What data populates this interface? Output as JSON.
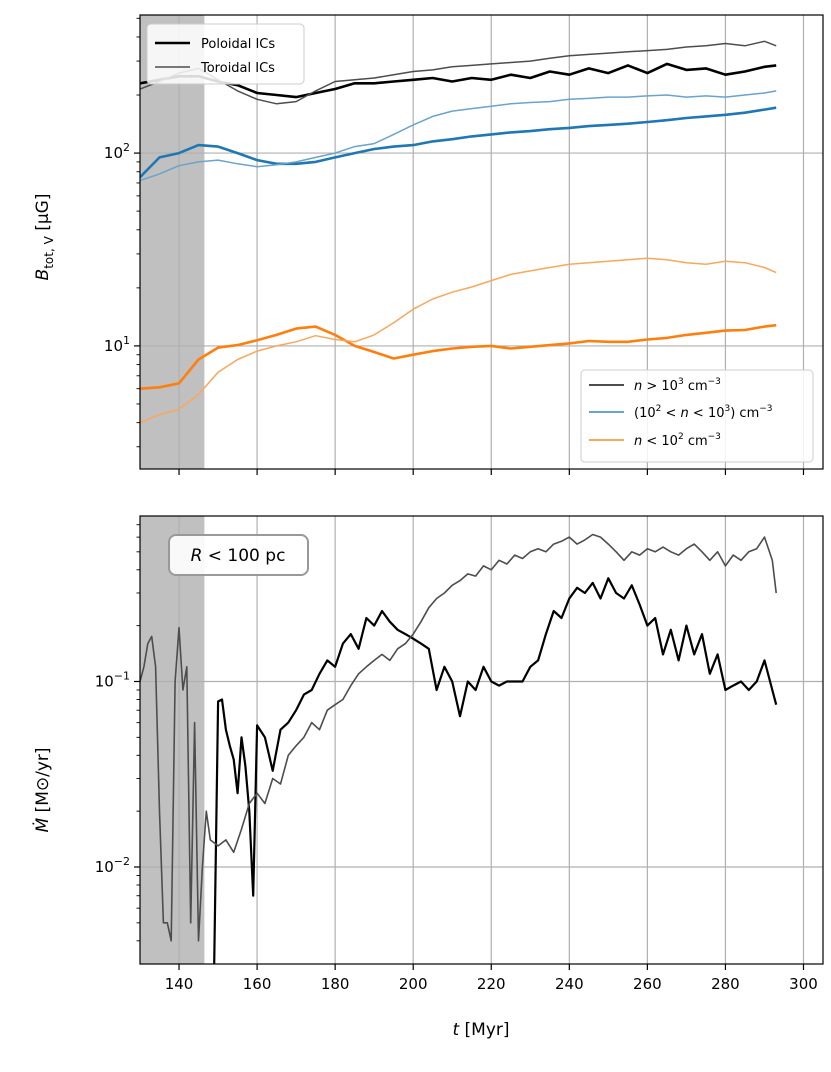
{
  "colors": {
    "poloidal_dense": "#000000",
    "toroidal_dense": "#4d4d4d",
    "blue": "#1f77b4",
    "orange": "#ff7f0e",
    "shade": "#c0c0c0",
    "grid": "#b0b0b0"
  },
  "chart_data": [
    {
      "type": "line",
      "panel": "top",
      "yscale": "log",
      "xlim": [
        130,
        305
      ],
      "ylim": [
        2.3,
        520
      ],
      "grid": true,
      "shaded_span": [
        130,
        146.5
      ],
      "ylabel": {
        "main": "B",
        "sub": "tot, V",
        "unit": "[μG]"
      },
      "xlabel": "",
      "yticks": [
        10,
        100
      ],
      "ytick_labels": [
        {
          "base": "10",
          "exp": "1"
        },
        {
          "base": "10",
          "exp": "2"
        }
      ],
      "xticks": [
        140,
        160,
        180,
        200,
        220,
        240,
        260,
        280,
        300
      ],
      "legend_ic": {
        "placement": "upper-left",
        "entries": [
          {
            "label": "Poloidal ICs",
            "style": "thick"
          },
          {
            "label": "Toroidal ICs",
            "style": "thin"
          }
        ]
      },
      "legend_density": {
        "placement": "lower-right",
        "entries": [
          {
            "pre": "n > 10",
            "sup": "3",
            "post": " cm",
            "sup2": "−3",
            "color": "#4d4d4d"
          },
          {
            "pre": "(10",
            "sup": "2",
            "mid": " < n < 10",
            "sup_b": "3",
            "post": ") cm",
            "sup2": "−3",
            "color": "#6aa3cc"
          },
          {
            "pre": "n < 10",
            "sup": "2",
            "post": " cm",
            "sup2": "−3",
            "color": "#f7a85c"
          }
        ]
      },
      "series": [
        {
          "name": "Poloidal ICs, n > 10^3 cm^-3",
          "color": "#000000",
          "width": 2.6,
          "x": [
            130,
            135,
            140,
            145,
            150,
            155,
            160,
            165,
            170,
            175,
            180,
            185,
            190,
            195,
            200,
            205,
            210,
            215,
            220,
            225,
            230,
            235,
            240,
            245,
            250,
            255,
            260,
            265,
            270,
            275,
            280,
            285,
            290,
            293
          ],
          "y": [
            230,
            240,
            250,
            250,
            235,
            225,
            205,
            200,
            195,
            205,
            215,
            230,
            230,
            235,
            240,
            245,
            235,
            245,
            240,
            255,
            245,
            265,
            255,
            275,
            260,
            285,
            260,
            290,
            270,
            275,
            255,
            265,
            280,
            285
          ]
        },
        {
          "name": "Toroidal ICs, n > 10^3 cm^-3",
          "color": "#4d4d4d",
          "width": 1.5,
          "x": [
            130,
            135,
            140,
            145,
            150,
            155,
            160,
            165,
            170,
            175,
            180,
            185,
            190,
            195,
            200,
            205,
            210,
            215,
            220,
            225,
            230,
            235,
            240,
            245,
            250,
            255,
            260,
            265,
            270,
            275,
            280,
            285,
            290,
            293
          ],
          "y": [
            215,
            235,
            260,
            275,
            240,
            210,
            190,
            180,
            185,
            210,
            235,
            240,
            245,
            255,
            265,
            270,
            280,
            285,
            290,
            295,
            300,
            310,
            320,
            325,
            330,
            335,
            340,
            345,
            355,
            360,
            370,
            360,
            380,
            360
          ]
        },
        {
          "name": "Poloidal ICs, (10^2 < n < 10^3) cm^-3",
          "color": "#1f77b4",
          "width": 2.6,
          "x": [
            130,
            135,
            140,
            145,
            150,
            155,
            160,
            165,
            170,
            175,
            180,
            185,
            190,
            195,
            200,
            205,
            210,
            215,
            220,
            225,
            230,
            235,
            240,
            245,
            250,
            255,
            260,
            265,
            270,
            275,
            280,
            285,
            290,
            293
          ],
          "y": [
            75,
            95,
            100,
            110,
            108,
            100,
            92,
            88,
            88,
            90,
            95,
            100,
            105,
            108,
            110,
            115,
            118,
            122,
            125,
            128,
            130,
            133,
            135,
            138,
            140,
            142,
            145,
            148,
            152,
            155,
            158,
            162,
            168,
            172
          ]
        },
        {
          "name": "Toroidal ICs, (10^2 < n < 10^3) cm^-3",
          "color": "#6aa3cc",
          "width": 1.5,
          "x": [
            130,
            135,
            140,
            145,
            150,
            155,
            160,
            165,
            170,
            175,
            180,
            185,
            190,
            195,
            200,
            205,
            210,
            215,
            220,
            225,
            230,
            235,
            240,
            245,
            250,
            255,
            260,
            265,
            270,
            275,
            280,
            285,
            290,
            293
          ],
          "y": [
            72,
            78,
            86,
            90,
            92,
            88,
            85,
            87,
            90,
            95,
            100,
            108,
            112,
            125,
            140,
            155,
            165,
            170,
            175,
            180,
            183,
            185,
            190,
            192,
            195,
            195,
            198,
            200,
            195,
            198,
            195,
            200,
            205,
            210
          ]
        },
        {
          "name": "Poloidal ICs, n < 10^2 cm^-3",
          "color": "#ff7f0e",
          "width": 2.6,
          "x": [
            130,
            135,
            140,
            145,
            150,
            155,
            160,
            165,
            170,
            175,
            180,
            185,
            190,
            195,
            200,
            205,
            210,
            215,
            220,
            225,
            230,
            235,
            240,
            245,
            250,
            255,
            260,
            265,
            270,
            275,
            280,
            285,
            290,
            293
          ],
          "y": [
            6.0,
            6.1,
            6.4,
            8.5,
            9.8,
            10.1,
            10.7,
            11.4,
            12.3,
            12.6,
            11.4,
            10.0,
            9.3,
            8.6,
            9.0,
            9.4,
            9.7,
            9.9,
            10.0,
            9.7,
            9.9,
            10.1,
            10.3,
            10.6,
            10.5,
            10.5,
            10.8,
            11.0,
            11.4,
            11.7,
            12.0,
            12.1,
            12.6,
            12.8
          ]
        },
        {
          "name": "Toroidal ICs, n < 10^2 cm^-3",
          "color": "#f7a85c",
          "width": 1.5,
          "x": [
            130,
            135,
            140,
            145,
            150,
            155,
            160,
            165,
            170,
            175,
            180,
            185,
            190,
            195,
            200,
            205,
            210,
            215,
            220,
            225,
            230,
            235,
            240,
            245,
            250,
            255,
            260,
            265,
            270,
            275,
            280,
            285,
            290,
            293
          ],
          "y": [
            4.0,
            4.4,
            4.7,
            5.6,
            7.3,
            8.5,
            9.4,
            10.0,
            10.5,
            11.3,
            10.8,
            10.5,
            11.4,
            13.2,
            15.5,
            17.5,
            19.0,
            20.2,
            21.8,
            23.5,
            24.5,
            25.5,
            26.5,
            27.0,
            27.5,
            28.0,
            28.5,
            28.0,
            27.0,
            26.5,
            27.5,
            27.0,
            25.5,
            24.0
          ]
        }
      ]
    },
    {
      "type": "line",
      "panel": "bottom",
      "yscale": "log",
      "xlim": [
        130,
        305
      ],
      "ylim": [
        0.003,
        0.78
      ],
      "grid": true,
      "shaded_span": [
        130,
        146.5
      ],
      "ylabel": {
        "main": "Ṁ",
        "unit": "[M⊙/yr]"
      },
      "xlabel": {
        "main": "t",
        "unit": "[Myr]"
      },
      "yticks": [
        0.01,
        0.1
      ],
      "ytick_labels": [
        {
          "base": "10",
          "exp": "−2"
        },
        {
          "base": "10",
          "exp": "−1"
        }
      ],
      "xticks": [
        140,
        160,
        180,
        200,
        220,
        240,
        260,
        280,
        300
      ],
      "xtick_labels": [
        "140",
        "160",
        "180",
        "200",
        "220",
        "240",
        "260",
        "280",
        "300"
      ],
      "annotation": {
        "pre": "R",
        "post": " < 100 pc",
        "placement": "upper-left"
      },
      "series": [
        {
          "name": "Poloidal ICs",
          "color": "#000000",
          "width": 2.2,
          "x": [
            149,
            150,
            151,
            152,
            153,
            154,
            155,
            156,
            157,
            158,
            159,
            160,
            162,
            164,
            166,
            168,
            170,
            172,
            174,
            176,
            178,
            180,
            182,
            184,
            186,
            188,
            190,
            192,
            194,
            196,
            198,
            200,
            202,
            204,
            206,
            208,
            210,
            212,
            214,
            216,
            218,
            220,
            222,
            224,
            226,
            228,
            230,
            232,
            234,
            236,
            238,
            240,
            242,
            244,
            246,
            248,
            250,
            252,
            254,
            256,
            258,
            260,
            262,
            264,
            266,
            268,
            270,
            272,
            274,
            276,
            278,
            280,
            282,
            284,
            286,
            288,
            290,
            292,
            293
          ],
          "y": [
            0.003,
            0.078,
            0.08,
            0.055,
            0.045,
            0.038,
            0.025,
            0.05,
            0.035,
            0.02,
            0.007,
            0.058,
            0.05,
            0.033,
            0.055,
            0.06,
            0.07,
            0.085,
            0.09,
            0.11,
            0.13,
            0.12,
            0.16,
            0.18,
            0.15,
            0.22,
            0.2,
            0.24,
            0.21,
            0.19,
            0.18,
            0.17,
            0.16,
            0.15,
            0.09,
            0.12,
            0.1,
            0.065,
            0.1,
            0.09,
            0.12,
            0.1,
            0.095,
            0.1,
            0.1,
            0.1,
            0.12,
            0.13,
            0.18,
            0.24,
            0.22,
            0.28,
            0.32,
            0.3,
            0.34,
            0.28,
            0.36,
            0.3,
            0.28,
            0.33,
            0.26,
            0.2,
            0.22,
            0.14,
            0.19,
            0.13,
            0.2,
            0.14,
            0.18,
            0.11,
            0.14,
            0.09,
            0.095,
            0.1,
            0.09,
            0.1,
            0.13,
            0.09,
            0.075
          ]
        },
        {
          "name": "Toroidal ICs",
          "color": "#4d4d4d",
          "width": 1.6,
          "x": [
            130,
            131,
            132,
            133,
            134,
            135,
            136,
            137,
            138,
            139,
            140,
            141,
            142,
            143,
            144,
            145,
            146,
            147,
            148,
            150,
            152,
            154,
            156,
            158,
            160,
            162,
            164,
            166,
            168,
            170,
            172,
            174,
            176,
            178,
            180,
            182,
            184,
            186,
            188,
            190,
            192,
            194,
            196,
            198,
            200,
            202,
            204,
            206,
            208,
            210,
            212,
            214,
            216,
            218,
            220,
            222,
            224,
            226,
            228,
            230,
            232,
            234,
            236,
            238,
            240,
            242,
            244,
            246,
            248,
            250,
            252,
            254,
            256,
            258,
            260,
            262,
            264,
            266,
            268,
            270,
            272,
            274,
            276,
            278,
            280,
            282,
            284,
            286,
            288,
            290,
            292,
            293
          ],
          "y": [
            0.1,
            0.12,
            0.16,
            0.175,
            0.12,
            0.02,
            0.005,
            0.005,
            0.004,
            0.1,
            0.195,
            0.09,
            0.12,
            0.005,
            0.06,
            0.004,
            0.01,
            0.02,
            0.014,
            0.013,
            0.014,
            0.012,
            0.016,
            0.022,
            0.025,
            0.022,
            0.03,
            0.028,
            0.04,
            0.045,
            0.05,
            0.06,
            0.055,
            0.07,
            0.075,
            0.08,
            0.095,
            0.11,
            0.12,
            0.13,
            0.14,
            0.13,
            0.15,
            0.16,
            0.18,
            0.21,
            0.25,
            0.28,
            0.3,
            0.33,
            0.35,
            0.38,
            0.37,
            0.42,
            0.4,
            0.45,
            0.43,
            0.48,
            0.46,
            0.5,
            0.52,
            0.5,
            0.55,
            0.57,
            0.6,
            0.55,
            0.58,
            0.62,
            0.6,
            0.55,
            0.5,
            0.45,
            0.5,
            0.48,
            0.52,
            0.5,
            0.53,
            0.5,
            0.48,
            0.52,
            0.55,
            0.5,
            0.45,
            0.5,
            0.42,
            0.48,
            0.45,
            0.5,
            0.52,
            0.6,
            0.45,
            0.3
          ]
        }
      ]
    }
  ]
}
